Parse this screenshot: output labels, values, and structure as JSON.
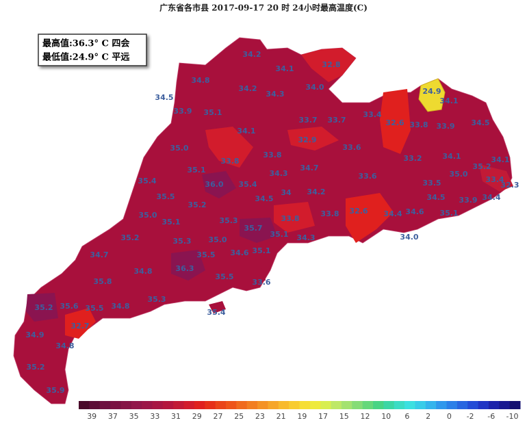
{
  "header": {
    "title": "广东省各市县 2017-09-17 20 时 24小时最高温度(C)"
  },
  "info_box": {
    "lines": [
      "最高值:36.3° C 四会",
      "最低值:24.9° C 平远"
    ]
  },
  "map": {
    "labels": [
      "34.2",
      "34.1",
      "32.8",
      "34.8",
      "34.2",
      "34.3",
      "34.0",
      "34.5",
      "33.9",
      "35.1",
      "33.7",
      "33.7",
      "33.4",
      "32.6",
      "33.8",
      "33.9",
      "24.9",
      "34.1",
      "34.5",
      "34.1",
      "32.9",
      "35.0",
      "33.8",
      "33.8",
      "33.6",
      "33.2",
      "34.1",
      "34.1",
      "35.1",
      "34.7",
      "34.3",
      "33.6",
      "35.0",
      "35.2",
      "33.4",
      "32.3",
      "35.4",
      "36.0",
      "35.4",
      "34",
      "34.2",
      "33.5",
      "35.5",
      "34.5",
      "34.5",
      "34.4",
      "33.9",
      "35.2",
      "35.0",
      "32.6",
      "33.8",
      "33.8",
      "34.4",
      "34.6",
      "35.1",
      "35.1",
      "35.3",
      "35.7",
      "35.1",
      "35.2",
      "35.3",
      "35.0",
      "34.3",
      "34.0",
      "34.7",
      "35.5",
      "34.6",
      "35.1",
      "34.8",
      "36.3",
      "35.8",
      "35.5",
      "33.6",
      "35.3",
      "35.2",
      "35.6",
      "35.5",
      "34.8",
      "35.4",
      "32.7",
      "34.9",
      "34.8",
      "35.2",
      "35.9"
    ]
  },
  "legend": {
    "colors": [
      "#4a0a2a",
      "#5c0d36",
      "#6e1040",
      "#7a1242",
      "#861446",
      "#92164a",
      "#9c1648",
      "#a81644",
      "#b4163e",
      "#c21a36",
      "#d21c2c",
      "#e0201e",
      "#e63018",
      "#ea4418",
      "#ee5418",
      "#f06a1c",
      "#f27e20",
      "#f49224",
      "#f6a628",
      "#f8ba2c",
      "#f8cc30",
      "#f6de34",
      "#eeea3c",
      "#d8ee50",
      "#bee866",
      "#a4e270",
      "#86dc76",
      "#66d87a",
      "#48d484",
      "#3cd6a4",
      "#3cdcc4",
      "#3ce0e0",
      "#38cce8",
      "#34b4ec",
      "#3098ec",
      "#2c80e8",
      "#2866e0",
      "#244cd6",
      "#2034c4",
      "#1c22aa",
      "#181890",
      "#141070"
    ],
    "labels": [
      39,
      37,
      35,
      33,
      31,
      29,
      27,
      25,
      23,
      21,
      19,
      17,
      15,
      12,
      10,
      6,
      2,
      0,
      -2,
      -6,
      -10
    ]
  }
}
